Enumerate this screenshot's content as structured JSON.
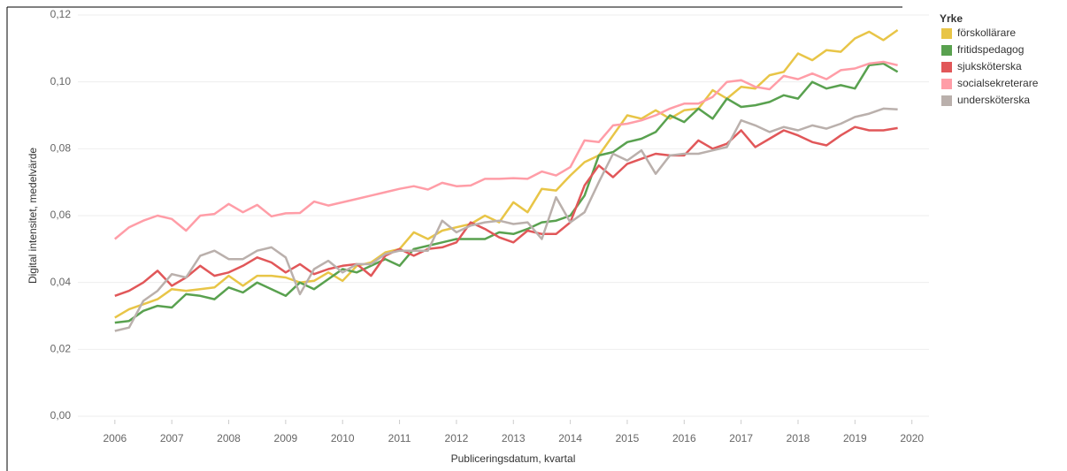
{
  "chart_data": {
    "type": "line",
    "y_label": "Digital intensitet, medelvärde",
    "x_label": "Publiceringsdatum, kvartal",
    "legend_title": "Yrke",
    "legend": "right",
    "grid": true,
    "xlim": [
      2005.35,
      2020.3
    ],
    "xticks": [
      2006,
      2007,
      2008,
      2009,
      2010,
      2011,
      2012,
      2013,
      2014,
      2015,
      2016,
      2017,
      2018,
      2019,
      2020
    ],
    "ylim": [
      0,
      0.12
    ],
    "yticks": [
      {
        "value": 0,
        "label": "0,00"
      },
      {
        "value": 0.02,
        "label": "0,02"
      },
      {
        "value": 0.04,
        "label": "0,04"
      },
      {
        "value": 0.06,
        "label": "0,06"
      },
      {
        "value": 0.08,
        "label": "0,08"
      },
      {
        "value": 0.1,
        "label": "0,10"
      },
      {
        "value": 0.12,
        "label": "0,12"
      }
    ],
    "x": [
      2006,
      2006.25,
      2006.5,
      2006.75,
      2007,
      2007.25,
      2007.5,
      2007.75,
      2008,
      2008.25,
      2008.5,
      2008.75,
      2009,
      2009.25,
      2009.5,
      2009.75,
      2010,
      2010.25,
      2010.5,
      2010.75,
      2011,
      2011.25,
      2011.5,
      2011.75,
      2012,
      2012.25,
      2012.5,
      2012.75,
      2013,
      2013.25,
      2013.5,
      2013.75,
      2014,
      2014.25,
      2014.5,
      2014.75,
      2015,
      2015.25,
      2015.5,
      2015.75,
      2016,
      2016.25,
      2016.5,
      2016.75,
      2017,
      2017.25,
      2017.5,
      2017.75,
      2018,
      2018.25,
      2018.5,
      2018.75,
      2019,
      2019.25,
      2019.5,
      2019.75
    ],
    "series": [
      {
        "name": "förskollärare",
        "color": "#e8c547",
        "values": [
          0.0295,
          0.032,
          0.0335,
          0.035,
          0.038,
          0.0375,
          0.038,
          0.0385,
          0.042,
          0.039,
          0.042,
          0.042,
          0.0415,
          0.04,
          0.0405,
          0.043,
          0.0405,
          0.045,
          0.046,
          0.049,
          0.05,
          0.055,
          0.053,
          0.0555,
          0.0565,
          0.0575,
          0.06,
          0.058,
          0.064,
          0.061,
          0.068,
          0.0675,
          0.072,
          0.076,
          0.078,
          0.084,
          0.09,
          0.089,
          0.0915,
          0.089,
          0.0915,
          0.092,
          0.0975,
          0.095,
          0.0985,
          0.098,
          0.102,
          0.103,
          0.1085,
          0.1065,
          0.1095,
          0.109,
          0.113,
          0.115,
          0.1125,
          0.1155
        ]
      },
      {
        "name": "fritidspedagog",
        "color": "#59a14f",
        "values": [
          0.028,
          0.0285,
          0.0315,
          0.033,
          0.0325,
          0.0365,
          0.036,
          0.035,
          0.0385,
          0.037,
          0.04,
          0.038,
          0.036,
          0.04,
          0.038,
          0.041,
          0.044,
          0.043,
          0.045,
          0.047,
          0.045,
          0.05,
          0.051,
          0.052,
          0.053,
          0.053,
          0.053,
          0.055,
          0.0545,
          0.056,
          0.058,
          0.0585,
          0.06,
          0.066,
          0.078,
          0.079,
          0.082,
          0.083,
          0.085,
          0.09,
          0.088,
          0.092,
          0.089,
          0.095,
          0.0925,
          0.093,
          0.094,
          0.096,
          0.095,
          0.1,
          0.098,
          0.099,
          0.098,
          0.105,
          0.1055,
          0.103
        ]
      },
      {
        "name": "sjuksköterska",
        "color": "#e15759",
        "values": [
          0.036,
          0.0375,
          0.04,
          0.0435,
          0.039,
          0.0415,
          0.045,
          0.042,
          0.043,
          0.045,
          0.0475,
          0.046,
          0.043,
          0.0455,
          0.0425,
          0.044,
          0.045,
          0.0455,
          0.042,
          0.048,
          0.05,
          0.048,
          0.05,
          0.0505,
          0.052,
          0.058,
          0.056,
          0.0535,
          0.052,
          0.0555,
          0.0545,
          0.0545,
          0.058,
          0.069,
          0.075,
          0.0715,
          0.0755,
          0.077,
          0.0785,
          0.078,
          0.078,
          0.0825,
          0.08,
          0.0815,
          0.0855,
          0.0805,
          0.083,
          0.0855,
          0.084,
          0.082,
          0.081,
          0.084,
          0.0865,
          0.0855,
          0.0855,
          0.0862
        ]
      },
      {
        "name": "socialsekreterare",
        "color": "#ff9da7",
        "values": [
          0.053,
          0.0565,
          0.0585,
          0.06,
          0.059,
          0.0555,
          0.06,
          0.0605,
          0.0635,
          0.061,
          0.0632,
          0.0598,
          0.0607,
          0.0608,
          0.0642,
          0.063,
          0.064,
          0.065,
          0.066,
          0.067,
          0.068,
          0.0688,
          0.0678,
          0.0698,
          0.0688,
          0.069,
          0.071,
          0.071,
          0.0712,
          0.071,
          0.0732,
          0.072,
          0.0745,
          0.0825,
          0.082,
          0.087,
          0.0875,
          0.0885,
          0.09,
          0.092,
          0.0935,
          0.0935,
          0.0955,
          0.1,
          0.1005,
          0.0985,
          0.0978,
          0.1018,
          0.1008,
          0.1025,
          0.1008,
          0.1035,
          0.104,
          0.1055,
          0.106,
          0.105
        ]
      },
      {
        "name": "undersköterska",
        "color": "#bab0ac",
        "values": [
          0.0255,
          0.0265,
          0.0345,
          0.0375,
          0.0425,
          0.0415,
          0.048,
          0.0495,
          0.047,
          0.047,
          0.0495,
          0.0505,
          0.0475,
          0.0365,
          0.044,
          0.0465,
          0.043,
          0.0455,
          0.0455,
          0.0485,
          0.0495,
          0.0495,
          0.0495,
          0.0585,
          0.055,
          0.057,
          0.058,
          0.0585,
          0.0575,
          0.058,
          0.053,
          0.0655,
          0.058,
          0.061,
          0.07,
          0.0785,
          0.0765,
          0.0795,
          0.0725,
          0.078,
          0.0785,
          0.0785,
          0.0795,
          0.0805,
          0.0885,
          0.087,
          0.085,
          0.0865,
          0.0855,
          0.087,
          0.086,
          0.0875,
          0.0895,
          0.0905,
          0.092,
          0.0918
        ]
      }
    ]
  }
}
